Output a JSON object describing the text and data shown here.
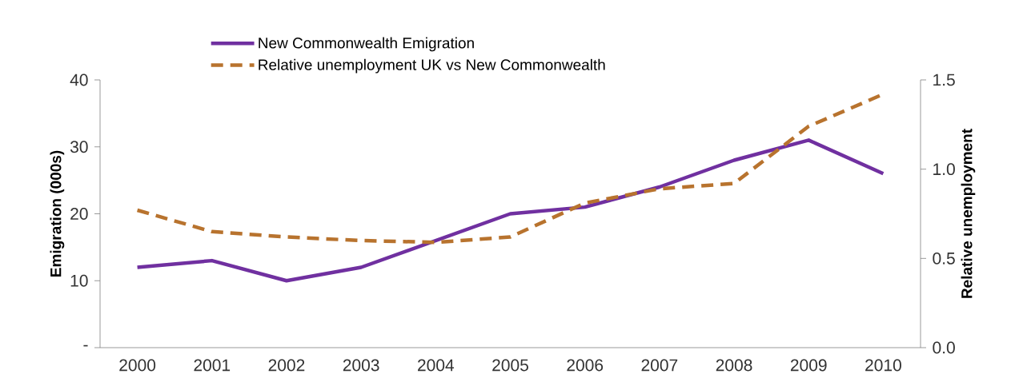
{
  "chart_data": {
    "type": "line",
    "categories": [
      "2000",
      "2001",
      "2002",
      "2003",
      "2004",
      "2005",
      "2006",
      "2007",
      "2008",
      "2009",
      "2010"
    ],
    "series": [
      {
        "name": "New Commonwealth Emigration",
        "color": "#7030a0",
        "line_style": "solid",
        "values": [
          12,
          13,
          10,
          12,
          16,
          20,
          21,
          24,
          28,
          31,
          26
        ]
      },
      {
        "name": "Relative unemployment UK vs New Commonwealth",
        "color": "#b8732e",
        "line_style": "dashed",
        "axis": "y2",
        "values": [
          0.77,
          0.65,
          0.62,
          0.6,
          0.59,
          0.62,
          0.81,
          0.89,
          0.92,
          1.24,
          1.42
        ]
      }
    ],
    "ylabel": "Emigration (000s)",
    "y2label": "Relative unemployment",
    "ylim": [
      0,
      40
    ],
    "yticks": [
      {
        "value": 0,
        "label": "-"
      },
      10,
      20,
      30,
      40
    ],
    "y2lim": [
      0,
      1.5
    ],
    "y2ticks": [
      {
        "value": 0,
        "label": "0.0"
      },
      {
        "value": 0.5,
        "label": "0.5"
      },
      {
        "value": 1,
        "label": "1.0"
      },
      {
        "value": 1.5,
        "label": "1.5"
      }
    ],
    "legend": "top"
  }
}
